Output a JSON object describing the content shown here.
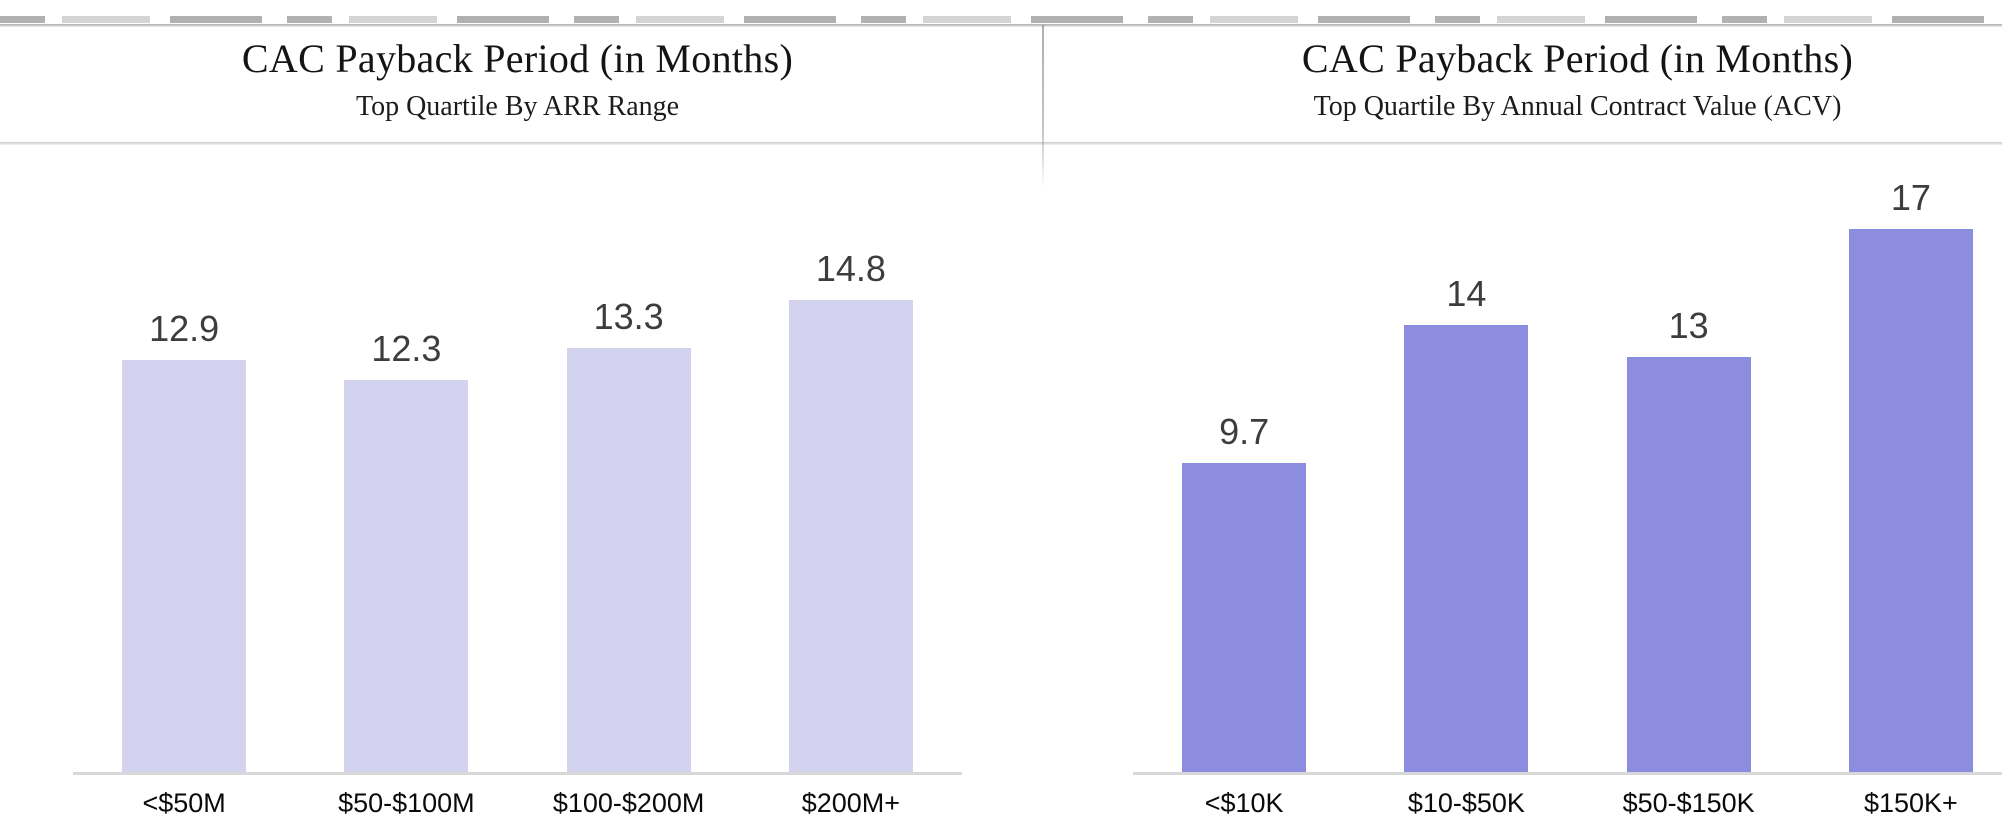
{
  "chart_data": [
    {
      "type": "bar",
      "title": "CAC Payback Period (in Months)",
      "subtitle": "Top Quartile By ARR Range",
      "categories": [
        "<$50M",
        "$50-$100M",
        "$100-$200M",
        "$200M+"
      ],
      "values": [
        12.9,
        12.3,
        13.3,
        14.8
      ],
      "value_labels": [
        "12.9",
        "12.3",
        "13.3",
        "14.8"
      ],
      "bar_color": "#d3d3f0",
      "xlabel": "",
      "ylabel": "",
      "ylim": [
        0,
        24
      ],
      "grid": false,
      "legend": "none",
      "value_label_color": "#3d3d3d",
      "axis_line_color": "#d8d8d8"
    },
    {
      "type": "bar",
      "title": "CAC Payback Period (in Months)",
      "subtitle": "Top Quartile By Annual Contract Value (ACV)",
      "categories": [
        "<$10K",
        "$10-$50K",
        "$50-$150K",
        "$150K+"
      ],
      "values": [
        9.7,
        14,
        13,
        17
      ],
      "value_labels": [
        "9.7",
        "14",
        "13",
        "17"
      ],
      "bar_color": "#8c8dde",
      "xlabel": "",
      "ylabel": "",
      "ylim": [
        0,
        24
      ],
      "grid": false,
      "legend": "none",
      "value_label_color": "#3d3d3d",
      "axis_line_color": "#d8d8d8"
    }
  ]
}
